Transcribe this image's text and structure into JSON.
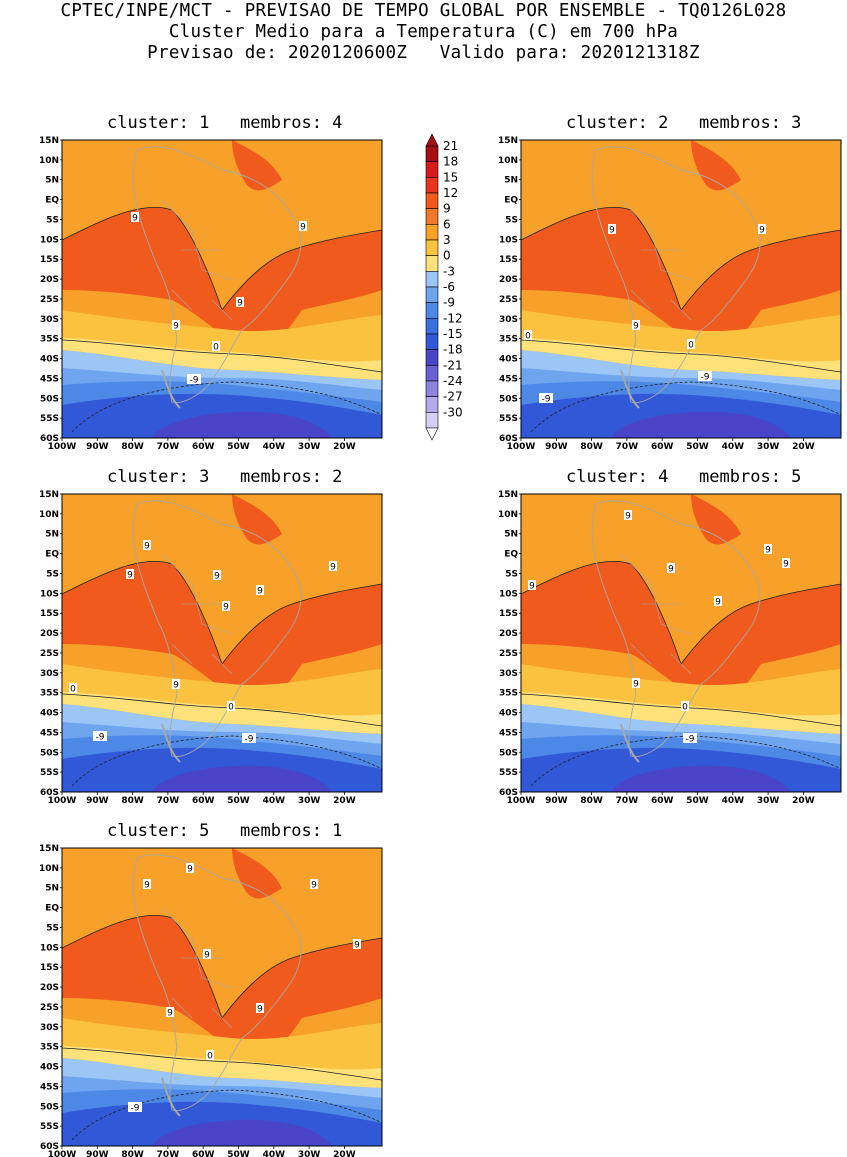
{
  "header": {
    "line1": "CPTEC/INPE/MCT - PREVISAO DE TEMPO GLOBAL POR ENSEMBLE - TQ0126L028",
    "line2": "Cluster Medio para a Temperatura (C) em 700 hPa",
    "line3": "Previsao de: 2020120600Z   Valido para: 2020121318Z"
  },
  "axes": {
    "lat_labels": [
      "15N",
      "10N",
      "5N",
      "EQ",
      "5S",
      "10S",
      "15S",
      "20S",
      "25S",
      "30S",
      "35S",
      "40S",
      "45S",
      "50S",
      "55S",
      "60S"
    ],
    "lon_labels": [
      "100W",
      "90W",
      "80W",
      "70W",
      "60W",
      "50W",
      "40W",
      "30W",
      "20W"
    ]
  },
  "colorbar": {
    "levels": [
      "21",
      "18",
      "15",
      "12",
      "9",
      "6",
      "3",
      "0",
      "-3",
      "-6",
      "-9",
      "-12",
      "-15",
      "-18",
      "-21",
      "-24",
      "-27",
      "-30"
    ],
    "colors": [
      "#a50f15",
      "#d7191c",
      "#e8341c",
      "#f05a1c",
      "#f3782a",
      "#f7a12a",
      "#fbc240",
      "#fde27a",
      "#9cc6f5",
      "#6fa4ee",
      "#4d88e6",
      "#3b6fe0",
      "#3158d6",
      "#4a44c9",
      "#6a5fd4",
      "#8f83e0",
      "#b2a8ea",
      "#d5cff4"
    ]
  },
  "panels": [
    {
      "title": "cluster: 1   membros: 4",
      "labels": {
        "nine": [
          [
            "135",
            "217"
          ],
          [
            "303",
            "226"
          ],
          [
            "240",
            "302"
          ],
          [
            "176",
            "325"
          ]
        ],
        "zero": [
          [
            "216",
            "346"
          ]
        ],
        "neg": [
          [
            "194",
            "379"
          ]
        ]
      }
    },
    {
      "title": "cluster: 2   membros: 3",
      "labels": {
        "nine": [
          [
            "612",
            "229"
          ],
          [
            "762",
            "229"
          ],
          [
            "636",
            "325"
          ]
        ],
        "zero": [
          [
            "528",
            "335"
          ],
          [
            "691",
            "344"
          ]
        ],
        "neg": [
          [
            "705",
            "376"
          ],
          [
            "546",
            "398"
          ]
        ]
      }
    },
    {
      "title": "cluster: 3   membros: 2",
      "labels": {
        "nine": [
          [
            "147",
            "545"
          ],
          [
            "130",
            "574"
          ],
          [
            "217",
            "575"
          ],
          [
            "260",
            "590"
          ],
          [
            "226",
            "606"
          ],
          [
            "176",
            "684"
          ],
          [
            "333",
            "566"
          ]
        ],
        "zero": [
          [
            "73",
            "688"
          ],
          [
            "231",
            "706"
          ]
        ],
        "neg": [
          [
            "100",
            "736"
          ],
          [
            "249",
            "738"
          ]
        ]
      }
    },
    {
      "title": "cluster: 4   membros: 5",
      "labels": {
        "nine": [
          [
            "628",
            "515"
          ],
          [
            "768",
            "549"
          ],
          [
            "786",
            "563"
          ],
          [
            "671",
            "568"
          ],
          [
            "532",
            "585"
          ],
          [
            "718",
            "601"
          ],
          [
            "636",
            "683"
          ]
        ],
        "zero": [
          [
            "685",
            "706"
          ]
        ],
        "neg": [
          [
            "690",
            "738"
          ]
        ]
      }
    },
    {
      "title": "cluster: 5   membros: 1",
      "labels": {
        "nine": [
          [
            "190",
            "868"
          ],
          [
            "147",
            "884"
          ],
          [
            "314",
            "884"
          ],
          [
            "357",
            "944"
          ],
          [
            "207",
            "954"
          ],
          [
            "170",
            "1012"
          ],
          [
            "260",
            "1008"
          ]
        ],
        "zero": [
          [
            "210",
            "1055"
          ]
        ],
        "neg": [
          [
            "135",
            "1107"
          ]
        ]
      }
    }
  ]
}
